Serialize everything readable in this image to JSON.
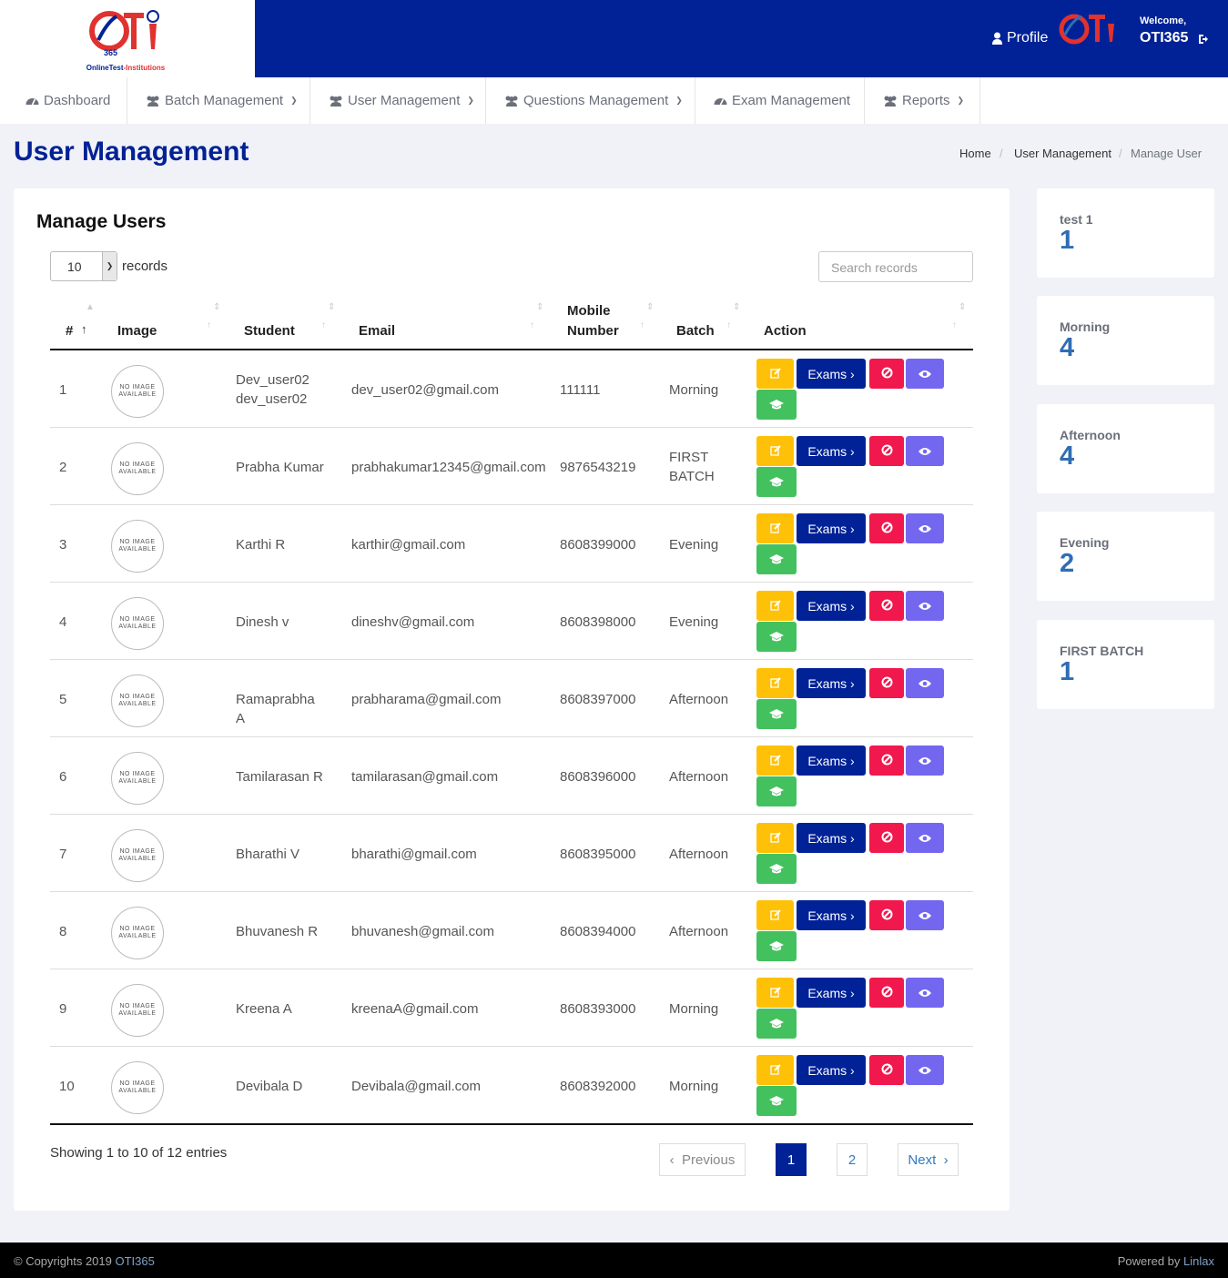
{
  "header": {
    "logo_caption_a": "OnlineTest",
    "logo_caption_b": "-Institutions",
    "profile_label": "Profile",
    "welcome": "Welcome,",
    "username": "OTI365"
  },
  "nav": [
    {
      "label": "Dashboard",
      "icon": "dashboard-icon",
      "dropdown": false
    },
    {
      "label": "Batch Management",
      "icon": "users-icon",
      "dropdown": true
    },
    {
      "label": "User Management",
      "icon": "users-icon",
      "dropdown": true
    },
    {
      "label": "Questions Management",
      "icon": "users-icon",
      "dropdown": true
    },
    {
      "label": "Exam Management",
      "icon": "dashboard-icon",
      "dropdown": false
    },
    {
      "label": "Reports",
      "icon": "users-icon",
      "dropdown": true
    }
  ],
  "page": {
    "title": "User Management",
    "breadcrumb": [
      "Home",
      "User Management",
      "Manage User"
    ]
  },
  "table_card": {
    "title": "Manage Users",
    "page_length": "10",
    "records_label": "records",
    "search_placeholder": "Search records",
    "columns": [
      "#",
      "Image",
      "Student",
      "Email",
      "Mobile Number",
      "Batch",
      "Action"
    ],
    "avatar_text_1": "NO IMAGE",
    "avatar_text_2": "AVAILABLE",
    "exams_label": "Exams ›",
    "rows": [
      {
        "num": "1",
        "student": "Dev_user02 dev_user02",
        "email": "dev_user02@gmail.com",
        "mobile": "111111",
        "batch": "Morning"
      },
      {
        "num": "2",
        "student": "Prabha Kumar",
        "email": "prabhakumar12345@gmail.com",
        "mobile": "9876543219",
        "batch": "FIRST BATCH"
      },
      {
        "num": "3",
        "student": "Karthi R",
        "email": "karthir@gmail.com",
        "mobile": "8608399000",
        "batch": "Evening"
      },
      {
        "num": "4",
        "student": "Dinesh v",
        "email": "dineshv@gmail.com",
        "mobile": "8608398000",
        "batch": "Evening"
      },
      {
        "num": "5",
        "student": "Ramaprabha A",
        "email": "prabharama@gmail.com",
        "mobile": "8608397000",
        "batch": "Afternoon"
      },
      {
        "num": "6",
        "student": "Tamilarasan R",
        "email": "tamilarasan@gmail.com",
        "mobile": "8608396000",
        "batch": "Afternoon"
      },
      {
        "num": "7",
        "student": "Bharathi V",
        "email": "bharathi@gmail.com",
        "mobile": "8608395000",
        "batch": "Afternoon"
      },
      {
        "num": "8",
        "student": "Bhuvanesh R",
        "email": "bhuvanesh@gmail.com",
        "mobile": "8608394000",
        "batch": "Afternoon"
      },
      {
        "num": "9",
        "student": "Kreena A",
        "email": "kreenaA@gmail.com",
        "mobile": "8608393000",
        "batch": "Morning"
      },
      {
        "num": "10",
        "student": "Devibala D",
        "email": "Devibala@gmail.com",
        "mobile": "8608392000",
        "batch": "Morning"
      }
    ],
    "info": "Showing 1 to 10 of 12 entries",
    "pagination": {
      "previous": "Previous",
      "pages": [
        "1",
        "2"
      ],
      "current": "1",
      "next": "Next"
    }
  },
  "batch_stats": [
    {
      "label": "test 1",
      "count": "1"
    },
    {
      "label": "Morning",
      "count": "4"
    },
    {
      "label": "Afternoon",
      "count": "4"
    },
    {
      "label": "Evening",
      "count": "2"
    },
    {
      "label": "FIRST BATCH",
      "count": "1"
    }
  ],
  "footer": {
    "copyright": "© Copyrights 2019",
    "brand": "OTI365",
    "powered": "Powered by",
    "powered_brand": "Linlax"
  },
  "colors": {
    "primary": "#002296",
    "edit": "#ffc107",
    "block": "#f0184c",
    "view": "#7367f0",
    "grad": "#43c15e",
    "stat_number": "#2f6db5"
  }
}
